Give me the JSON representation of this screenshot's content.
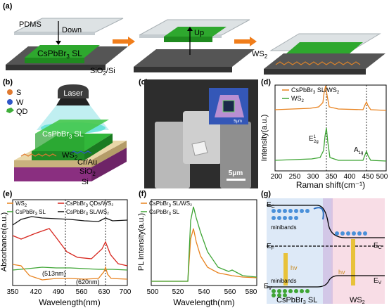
{
  "panel_labels": {
    "a": "(a)",
    "b": "(b)",
    "c": "(c)",
    "d": "(d)",
    "e": "(e)",
    "f": "(f)",
    "g": "(g)"
  },
  "panel_a": {
    "pdms": "PDMS",
    "down": "Down",
    "crystal": "CsPbBr",
    "crystal_sub": "3",
    "crystal_tail": " SL",
    "substrate": "SiO",
    "substrate_sub": "2",
    "substrate_tail": "/Si",
    "up": "Up",
    "ws2": "WS",
    "ws2_sub": "2"
  },
  "panel_b": {
    "legend_s": "S",
    "legend_w": "W",
    "legend_qd": "QD",
    "laser": "Laser",
    "crystal": "CsPbBr",
    "crystal_sub": "3",
    "crystal_tail": " SL",
    "ws2": "WS",
    "ws2_sub": "2",
    "contact": "Cr/Au",
    "oxide": "SiO",
    "oxide_sub": "2",
    "si": "Si",
    "colors": {
      "s": "#e07a30",
      "w": "#2f57c8",
      "qd": "#3fae3a"
    }
  },
  "panel_c": {
    "scalebar": "5μm",
    "inset_scalebar": "5μm"
  },
  "panel_d": {
    "xlabel": "Raman shift(cm⁻¹)",
    "ylabel": "Intensity(a.u.)",
    "ticks": [
      "200",
      "250",
      "300",
      "350",
      "400",
      "450",
      "500"
    ],
    "legend": [
      {
        "name": "CsPbBr",
        "sub": "3",
        "tail": " SL/WS",
        "sub2": "2",
        "color": "#e8821e"
      },
      {
        "name": "WS",
        "sub": "2",
        "tail": "",
        "sub2": "",
        "color": "#3fa535"
      }
    ],
    "peak1": "E",
    "peak1_sup": "1",
    "peak1_sub": "2g",
    "peak2": "A",
    "peak2_sub": "1g"
  },
  "panel_e": {
    "xlabel": "Wavelength(nm)",
    "ylabel": "Absorbance(a.u.)",
    "ticks": [
      "350",
      "420",
      "490",
      "560",
      "630",
      "700"
    ],
    "legend": [
      {
        "t": "WS",
        "s": "2",
        "r": "",
        "color": "#e8821e"
      },
      {
        "t": "CsPbBr",
        "s": "3",
        "r": " QDs/WS₂",
        "color": "#d7261e"
      },
      {
        "t": "CsPbBr",
        "s": "3",
        "r": " SL",
        "color": "#3fa535"
      },
      {
        "t": "CsPbBr",
        "s": "3",
        "r": " SL/WS₂",
        "color": "#111111"
      }
    ],
    "ann1": "(513nm)",
    "ann2": "(620nm)"
  },
  "panel_f": {
    "xlabel": "Wavelength(nm)",
    "ylabel": "PL intensity(a.u.)",
    "ticks": [
      "500",
      "520",
      "540",
      "560",
      "580"
    ],
    "legend": [
      {
        "t": "CsPbBr",
        "s": "3",
        "r": " SL/WS₂",
        "color": "#e8821e"
      },
      {
        "t": "CsPbBr",
        "s": "3",
        "r": " SL",
        "color": "#3fa535"
      }
    ]
  },
  "panel_g": {
    "ec": "E",
    "ec_sub": "C",
    "ef": "E",
    "ef_sub": "F",
    "ev": "E",
    "ev_sub": "V",
    "mini1": "minibands",
    "mini2": "minibands",
    "hv": "hv",
    "left": "CsPbBr",
    "left_sub": "3",
    "left_tail": " SL",
    "right": "WS",
    "right_sub": "2"
  }
}
